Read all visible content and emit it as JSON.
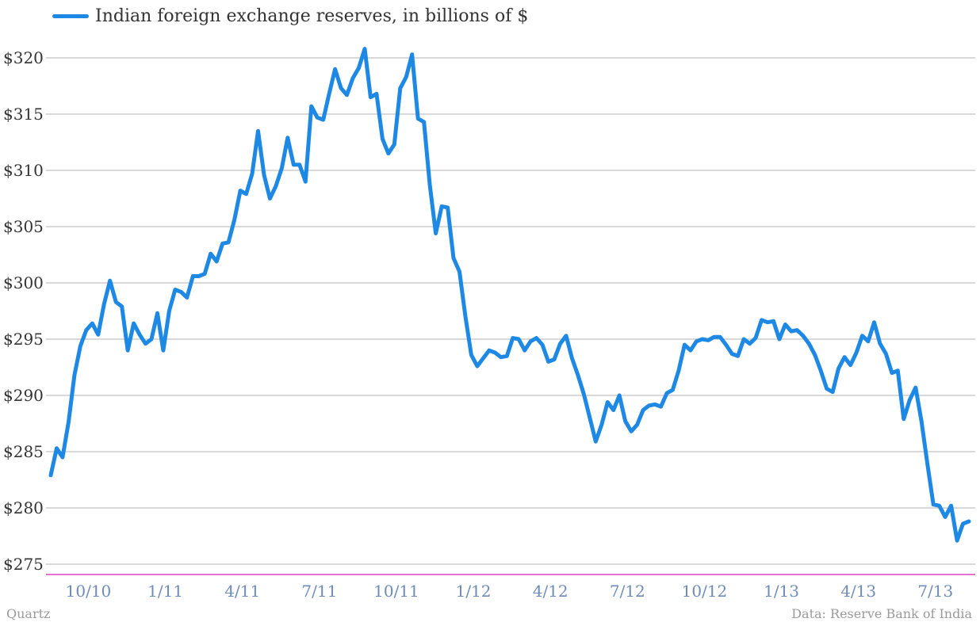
{
  "legend": {
    "label": "Indian foreign exchange reserves, in billions of $"
  },
  "footer": {
    "left": "Quartz",
    "right": "Data: Reserve Bank of India"
  },
  "colors": {
    "line": "#1e88e5",
    "grid": "#b3b3b3",
    "baseline": "#e040c0"
  },
  "chart_data": {
    "type": "line",
    "grid": true,
    "legend_position": "top-left",
    "ylim": [
      275,
      320
    ],
    "y_ticks": [
      275,
      280,
      285,
      290,
      295,
      300,
      305,
      310,
      315,
      320
    ],
    "y_tick_labels": [
      "$275",
      "$280",
      "$285",
      "$290",
      "$295",
      "$300",
      "$305",
      "$310",
      "$315",
      "$320"
    ],
    "x_tick_labels": [
      "10/10",
      "1/11",
      "4/11",
      "7/11",
      "10/11",
      "1/12",
      "4/12",
      "7/12",
      "10/12",
      "1/13",
      "4/13",
      "7/13"
    ],
    "x_tick_index": [
      1,
      14,
      27,
      40,
      53,
      66,
      79,
      92,
      105,
      118,
      131,
      144
    ],
    "series": [
      {
        "name": "Indian foreign exchange reserves, in billions of $",
        "values": [
          282.9,
          285.3,
          284.5,
          287.6,
          291.8,
          294.4,
          295.8,
          296.4,
          295.4,
          298.1,
          300.2,
          298.3,
          297.9,
          294.0,
          296.4,
          295.4,
          294.6,
          295.0,
          297.3,
          294.0,
          297.5,
          299.4,
          299.2,
          298.7,
          300.6,
          300.6,
          300.8,
          302.6,
          301.9,
          303.5,
          303.6,
          305.6,
          308.2,
          307.9,
          309.7,
          313.5,
          309.6,
          307.5,
          308.6,
          310.2,
          312.9,
          310.5,
          310.5,
          309.0,
          315.7,
          314.7,
          314.5,
          316.8,
          319.0,
          317.3,
          316.7,
          318.2,
          319.1,
          320.8,
          316.5,
          316.8,
          312.8,
          311.5,
          312.3,
          317.3,
          318.3,
          320.3,
          314.6,
          314.3,
          308.7,
          304.4,
          306.8,
          306.7,
          302.2,
          301.0,
          297.0,
          293.6,
          292.6,
          293.3,
          294.0,
          293.8,
          293.4,
          293.5,
          295.1,
          295.0,
          294.0,
          294.8,
          295.1,
          294.5,
          293.0,
          293.2,
          294.6,
          295.3,
          293.3,
          291.8,
          290.1,
          288.0,
          285.9,
          287.4,
          289.4,
          288.7,
          290.0,
          287.7,
          286.8,
          287.4,
          288.7,
          289.1,
          289.2,
          289.0,
          290.2,
          290.5,
          292.2,
          294.5,
          294.0,
          294.8,
          295.0,
          294.9,
          295.2,
          295.2,
          294.5,
          293.7,
          293.5,
          295.0,
          294.6,
          295.1,
          296.7,
          296.5,
          296.6,
          295.0,
          296.3,
          295.7,
          295.8,
          295.3,
          294.6,
          293.6,
          292.2,
          290.6,
          290.3,
          292.4,
          293.4,
          292.7,
          293.8,
          295.3,
          294.8,
          296.5,
          294.6,
          293.7,
          292.0,
          292.2,
          287.9,
          289.6,
          290.7,
          287.7,
          283.9,
          280.3,
          280.2,
          279.2,
          280.2,
          277.1,
          278.6,
          278.8
        ]
      }
    ]
  }
}
